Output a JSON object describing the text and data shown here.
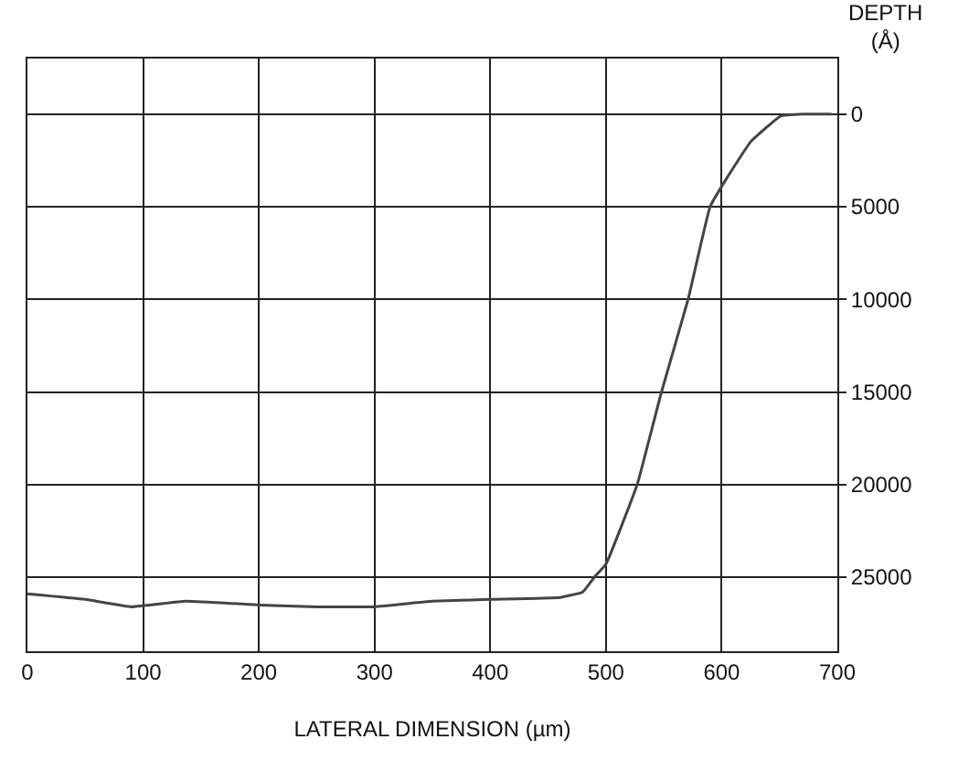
{
  "chart_data": {
    "type": "line",
    "xlabel": "LATERAL DIMENSION (µm)",
    "ylabel": "DEPTH (Å)",
    "x": [
      0,
      50,
      90,
      137,
      200,
      250,
      300,
      350,
      400,
      460,
      480,
      490,
      500,
      527,
      548,
      571,
      590,
      604,
      625,
      651,
      670,
      695
    ],
    "series": [
      {
        "color": "#444444",
        "values": [
          25900,
          26200,
          26600,
          26300,
          26500,
          26600,
          26600,
          26300,
          26200,
          26100,
          25800,
          25000,
          24300,
          20000,
          15000,
          10000,
          5000,
          3500,
          1500,
          100,
          0,
          0
        ]
      }
    ],
    "xlim": [
      0,
      700
    ],
    "xticks": [
      0,
      100,
      200,
      300,
      400,
      500,
      600,
      700
    ],
    "ylim": [
      29000,
      -3000
    ],
    "yticks": [
      0,
      5000,
      10000,
      15000,
      20000,
      25000
    ],
    "grid": true,
    "marker": "none",
    "line_style": "solid"
  }
}
